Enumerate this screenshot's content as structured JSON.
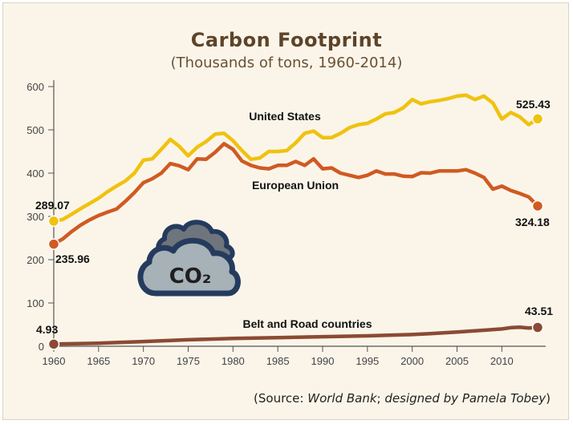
{
  "chart_data": {
    "type": "line",
    "title": "Carbon Footprint",
    "subtitle": "(Thousands of tons, 1960-2014)",
    "source": {
      "prefix": "(Source: ",
      "org": "World Bank",
      "mid": "; ",
      "credit": "designed by Pamela Tobey",
      "suffix": ")"
    },
    "xlim": [
      1960,
      2014
    ],
    "ylim": [
      0,
      600
    ],
    "x_ticks": [
      1960,
      1965,
      1970,
      1975,
      1980,
      1985,
      1990,
      1995,
      2000,
      2005,
      2010
    ],
    "y_ticks": [
      0,
      100,
      200,
      300,
      400,
      500,
      600
    ],
    "grid": false,
    "icon": "co2-cloud-icon",
    "icon_text": "CO₂",
    "series": [
      {
        "name": "United States",
        "color": "#f0c20f",
        "start_label": "289.07",
        "end_label": "525.43",
        "x": [
          1960,
          1961,
          1962,
          1963,
          1964,
          1965,
          1966,
          1967,
          1968,
          1969,
          1970,
          1971,
          1972,
          1973,
          1974,
          1975,
          1976,
          1977,
          1978,
          1979,
          1980,
          1981,
          1982,
          1983,
          1984,
          1985,
          1986,
          1987,
          1988,
          1989,
          1990,
          1991,
          1992,
          1993,
          1994,
          1995,
          1996,
          1997,
          1998,
          1999,
          2000,
          2001,
          2002,
          2003,
          2004,
          2005,
          2006,
          2007,
          2008,
          2009,
          2010,
          2011,
          2012,
          2013,
          2014
        ],
        "values": [
          289.07,
          293,
          305,
          318,
          330,
          342,
          357,
          370,
          382,
          400,
          430,
          433,
          455,
          478,
          462,
          440,
          460,
          473,
          490,
          492,
          475,
          452,
          432,
          435,
          450,
          450,
          452,
          470,
          492,
          497,
          482,
          482,
          492,
          505,
          512,
          515,
          525,
          537,
          540,
          551,
          570,
          560,
          565,
          568,
          572,
          578,
          580,
          570,
          578,
          562,
          525,
          540,
          530,
          512,
          525.43
        ]
      },
      {
        "name": "European Union",
        "color": "#d05a22",
        "start_label": "235.96",
        "end_label": "324.18",
        "x": [
          1960,
          1961,
          1962,
          1963,
          1964,
          1965,
          1966,
          1967,
          1968,
          1969,
          1970,
          1971,
          1972,
          1973,
          1974,
          1975,
          1976,
          1977,
          1978,
          1979,
          1980,
          1981,
          1982,
          1983,
          1984,
          1985,
          1986,
          1987,
          1988,
          1989,
          1990,
          1991,
          1992,
          1993,
          1994,
          1995,
          1996,
          1997,
          1998,
          1999,
          2000,
          2001,
          2002,
          2003,
          2004,
          2005,
          2006,
          2007,
          2008,
          2009,
          2010,
          2011,
          2012,
          2013,
          2014
        ],
        "values": [
          235.96,
          248,
          265,
          280,
          292,
          302,
          310,
          317,
          335,
          355,
          378,
          387,
          400,
          422,
          417,
          408,
          433,
          432,
          448,
          468,
          455,
          428,
          418,
          412,
          410,
          418,
          418,
          427,
          418,
          433,
          410,
          412,
          400,
          395,
          390,
          395,
          405,
          398,
          398,
          393,
          392,
          401,
          400,
          405,
          405,
          405,
          408,
          400,
          390,
          363,
          370,
          360,
          353,
          345,
          324.18
        ]
      },
      {
        "name": "Belt and Road countries",
        "color": "#8b4a33",
        "start_label": "4.93",
        "end_label": "43.51",
        "x": [
          1960,
          1965,
          1970,
          1975,
          1980,
          1985,
          1990,
          1995,
          2000,
          2002,
          2005,
          2008,
          2010,
          2011,
          2012,
          2013,
          2014
        ],
        "values": [
          4.93,
          7,
          11,
          15,
          18,
          20,
          22,
          24,
          27,
          29,
          33,
          37,
          40,
          43,
          44,
          42,
          43.51
        ]
      }
    ]
  }
}
